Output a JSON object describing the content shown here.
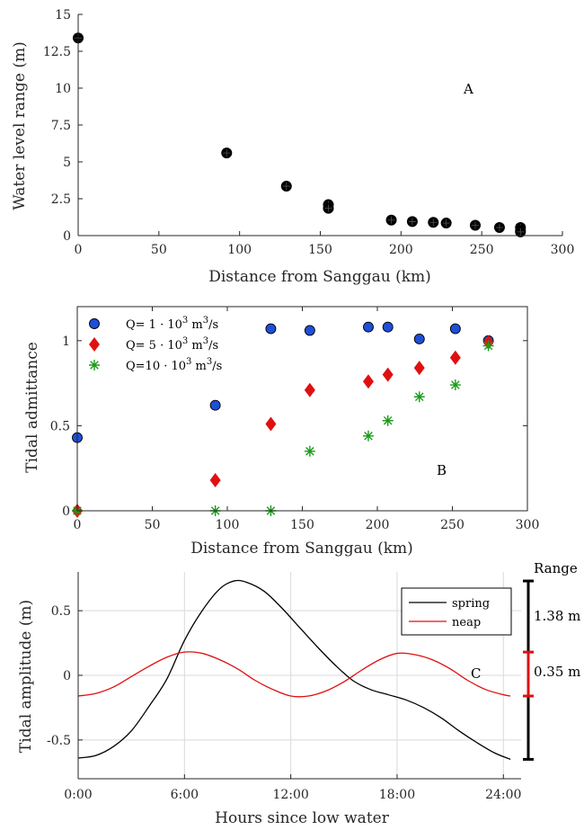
{
  "colors": {
    "axis": "#262626",
    "panelA_marker": "#000000",
    "q1": "#1f4fd8",
    "q5": "#e01010",
    "q10": "#1a9b1a",
    "spring": "#000000",
    "neap": "#e01010",
    "grid": "#d9d9d9"
  },
  "chart_data": [
    {
      "type": "scatter",
      "panel_label": "A",
      "xlabel": "Distance from Sanggau (km)",
      "ylabel": "Water level range (m)",
      "xlim": [
        0,
        300
      ],
      "ylim": [
        0,
        15
      ],
      "x_ticks": [
        "0",
        "50",
        "100",
        "150",
        "200",
        "250",
        "300"
      ],
      "y_ticks": [
        "0",
        "2.5",
        "5",
        "7.5",
        "10",
        "12.5",
        "15"
      ],
      "grid": false,
      "marker": "circle",
      "points": [
        [
          0,
          13.4
        ],
        [
          92,
          5.6
        ],
        [
          129,
          3.35
        ],
        [
          155,
          2.1
        ],
        [
          155,
          1.85
        ],
        [
          194,
          1.05
        ],
        [
          207,
          0.95
        ],
        [
          220,
          0.9
        ],
        [
          228,
          0.85
        ],
        [
          246,
          0.7
        ],
        [
          261,
          0.55
        ],
        [
          274,
          0.55
        ],
        [
          274,
          0.35
        ],
        [
          274,
          0.25
        ]
      ]
    },
    {
      "type": "scatter",
      "panel_label": "B",
      "xlabel": "Distance from Sanggau (km)",
      "ylabel": "Tidal admittance",
      "xlim": [
        0,
        300
      ],
      "ylim": [
        0,
        1.2
      ],
      "x_ticks": [
        "0",
        "50",
        "100",
        "150",
        "200",
        "250",
        "300"
      ],
      "y_ticks": [
        "0",
        "0.5",
        "1"
      ],
      "grid": false,
      "legend_position": "top-left",
      "series": [
        {
          "name": "Q= 1 · 10³ m³/s",
          "label_parts": [
            "Q= 1 · 10",
            "3",
            " m",
            "3",
            "/s"
          ],
          "marker": "circle",
          "color_key": "q1",
          "x": [
            0,
            92,
            129,
            155,
            194,
            207,
            228,
            252,
            274
          ],
          "y": [
            0.43,
            0.62,
            1.07,
            1.06,
            1.08,
            1.08,
            1.01,
            1.07,
            1.0
          ]
        },
        {
          "name": "Q= 5 · 10³ m³/s",
          "label_parts": [
            "Q= 5 · 10",
            "3",
            " m",
            "3",
            "/s"
          ],
          "marker": "diamond",
          "color_key": "q5",
          "x": [
            0,
            92,
            129,
            155,
            194,
            207,
            228,
            252,
            274
          ],
          "y": [
            0.0,
            0.18,
            0.51,
            0.71,
            0.76,
            0.8,
            0.84,
            0.9,
            0.99
          ]
        },
        {
          "name": "Q=10 · 10³ m³/s",
          "label_parts": [
            "Q=10 · 10",
            "3",
            " m",
            "3",
            "/s"
          ],
          "marker": "asterisk",
          "color_key": "q10",
          "x": [
            0,
            92,
            129,
            155,
            194,
            207,
            228,
            252,
            274
          ],
          "y": [
            0.0,
            0.0,
            0.0,
            0.35,
            0.44,
            0.53,
            0.67,
            0.74,
            0.97
          ]
        }
      ]
    },
    {
      "type": "line",
      "panel_label": "C",
      "xlabel": "Hours since low water",
      "ylabel": "Tidal amplitude (m)",
      "xlim": [
        0,
        25
      ],
      "ylim": [
        -0.8,
        0.8
      ],
      "x_ticks": [
        0,
        6,
        12,
        18,
        24
      ],
      "x_tick_labels": [
        "0:00",
        "6:00",
        "12:00",
        "18:00",
        "24:00"
      ],
      "y_ticks": [
        -0.5,
        0,
        0.5
      ],
      "y_tick_labels": [
        "-0.5",
        "0",
        "0.5"
      ],
      "grid": true,
      "legend_position": "top-right",
      "series": [
        {
          "name": "spring",
          "color_key": "spring",
          "x": [
            0,
            1,
            2,
            3,
            4,
            5,
            6,
            7,
            8,
            8.8,
            9.5,
            10.5,
            11.5,
            12.5,
            13.5,
            14.5,
            15.5,
            16.5,
            17.5,
            18.5,
            19.5,
            20.5,
            21.5,
            22.5,
            23.5,
            24.4
          ],
          "y": [
            -0.64,
            -0.62,
            -0.55,
            -0.43,
            -0.24,
            -0.03,
            0.27,
            0.5,
            0.67,
            0.73,
            0.72,
            0.65,
            0.52,
            0.37,
            0.22,
            0.08,
            -0.04,
            -0.11,
            -0.15,
            -0.19,
            -0.25,
            -0.33,
            -0.43,
            -0.52,
            -0.6,
            -0.65
          ]
        },
        {
          "name": "neap",
          "color_key": "neap",
          "x": [
            0,
            1,
            2,
            3,
            4,
            5,
            6,
            7,
            8,
            9,
            10,
            11,
            12,
            13,
            14,
            15,
            16,
            17,
            18,
            19,
            20,
            21,
            22,
            23,
            24,
            24.4
          ],
          "y": [
            -0.16,
            -0.14,
            -0.09,
            -0.01,
            0.07,
            0.14,
            0.18,
            0.17,
            0.12,
            0.05,
            -0.04,
            -0.11,
            -0.16,
            -0.16,
            -0.12,
            -0.05,
            0.04,
            0.12,
            0.17,
            0.16,
            0.12,
            0.05,
            -0.04,
            -0.11,
            -0.15,
            -0.16
          ]
        }
      ],
      "range_bars": {
        "header": "Range",
        "spring": {
          "from": -0.65,
          "to": 0.73,
          "label": "1.38 m",
          "color_key": "spring"
        },
        "neap": {
          "from": -0.16,
          "to": 0.18,
          "label": "0.35 m",
          "color_key": "neap"
        }
      }
    }
  ]
}
